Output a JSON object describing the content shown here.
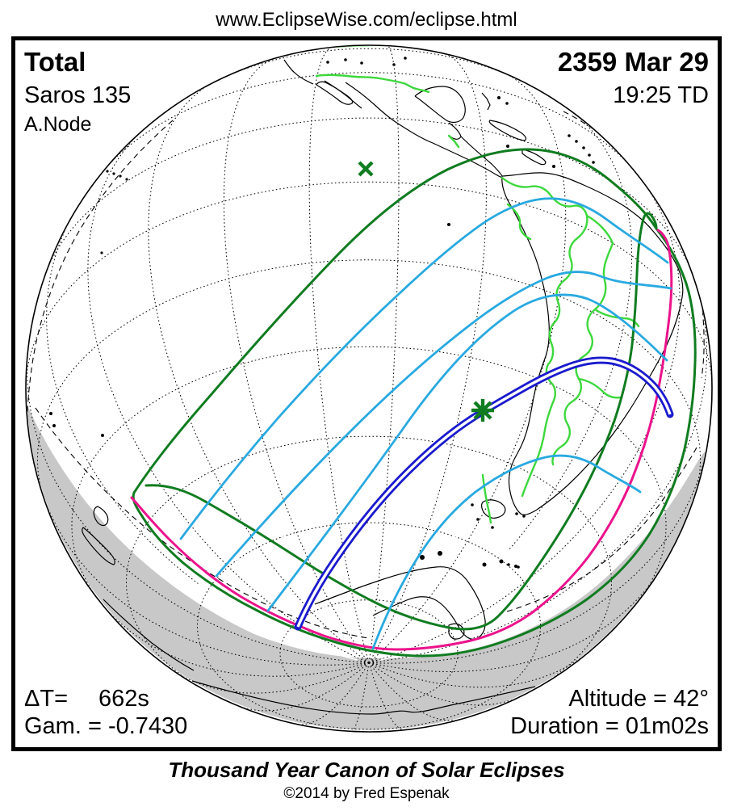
{
  "header": {
    "url": "www.EclipseWise.com/eclipse.html"
  },
  "info": {
    "eclipse_type": "Total",
    "saros": "Saros 135",
    "node": "A.Node",
    "date": "2359 Mar 29",
    "time": "19:25 TD",
    "delta_t_label": "ΔT=",
    "delta_t_value": "662s",
    "gamma": "Gam. = -0.7430",
    "altitude": "Altitude = 42°",
    "duration": "Duration = 01m02s"
  },
  "footer": {
    "series_title": "Thousand Year Canon of Solar Eclipses",
    "copyright": "©2014 by Fred Espenak"
  },
  "map": {
    "colors": {
      "penumbral_limit_green": "#107c20",
      "country_border_green": "#3dd83d",
      "max_eclipse_cyan": "#29a9e0",
      "central_path_blue": "#1a1acd",
      "sunrise_sunset_magenta": "#ec138c",
      "night_shade_gray": "#c8c8c8"
    },
    "markers": {
      "x_marker": "sub-solar-point",
      "star_marker": "point-of-greatest-eclipse"
    }
  }
}
